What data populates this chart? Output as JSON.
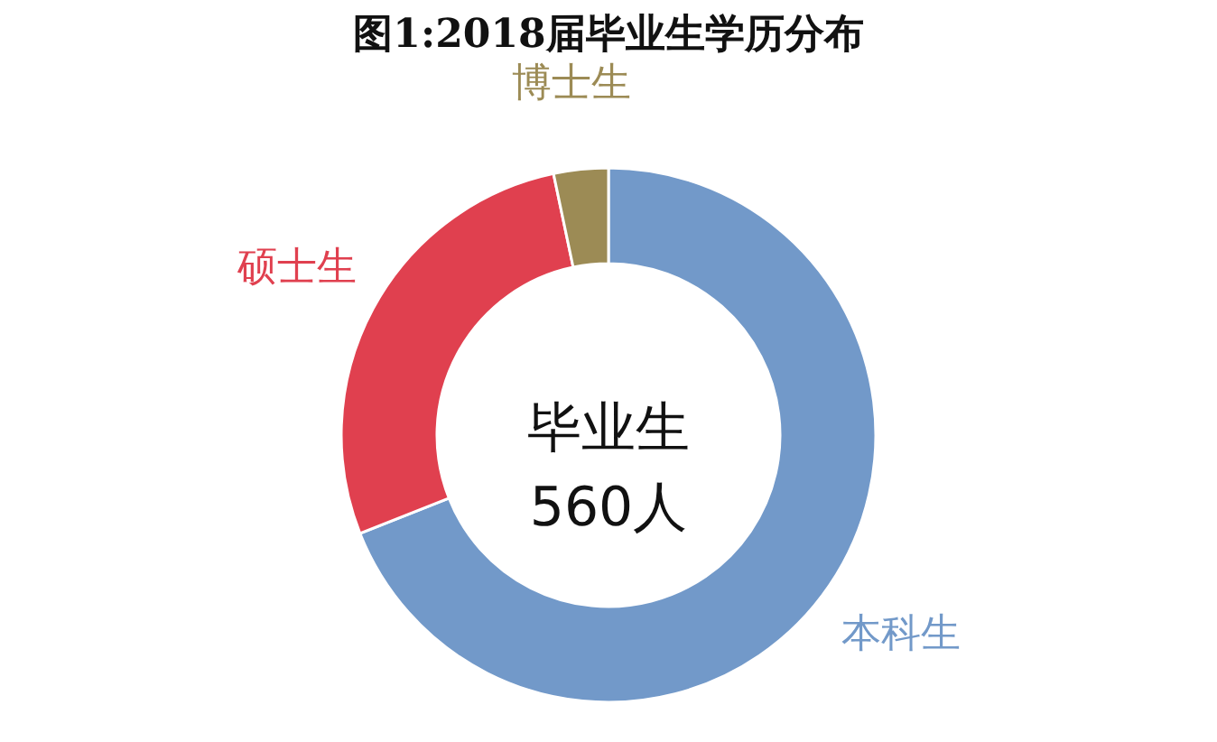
{
  "chart_data": {
    "type": "donut",
    "title": "图1:2018届毕业生学历分布",
    "categories": [
      "本科生",
      "硕士生",
      "博士生"
    ],
    "values": [
      69,
      27.7,
      3.3
    ],
    "colors": [
      "#7299c9",
      "#e0404f",
      "#9c8b55"
    ],
    "annotations": [
      "毕业生\n560人"
    ],
    "legend": false
  }
}
